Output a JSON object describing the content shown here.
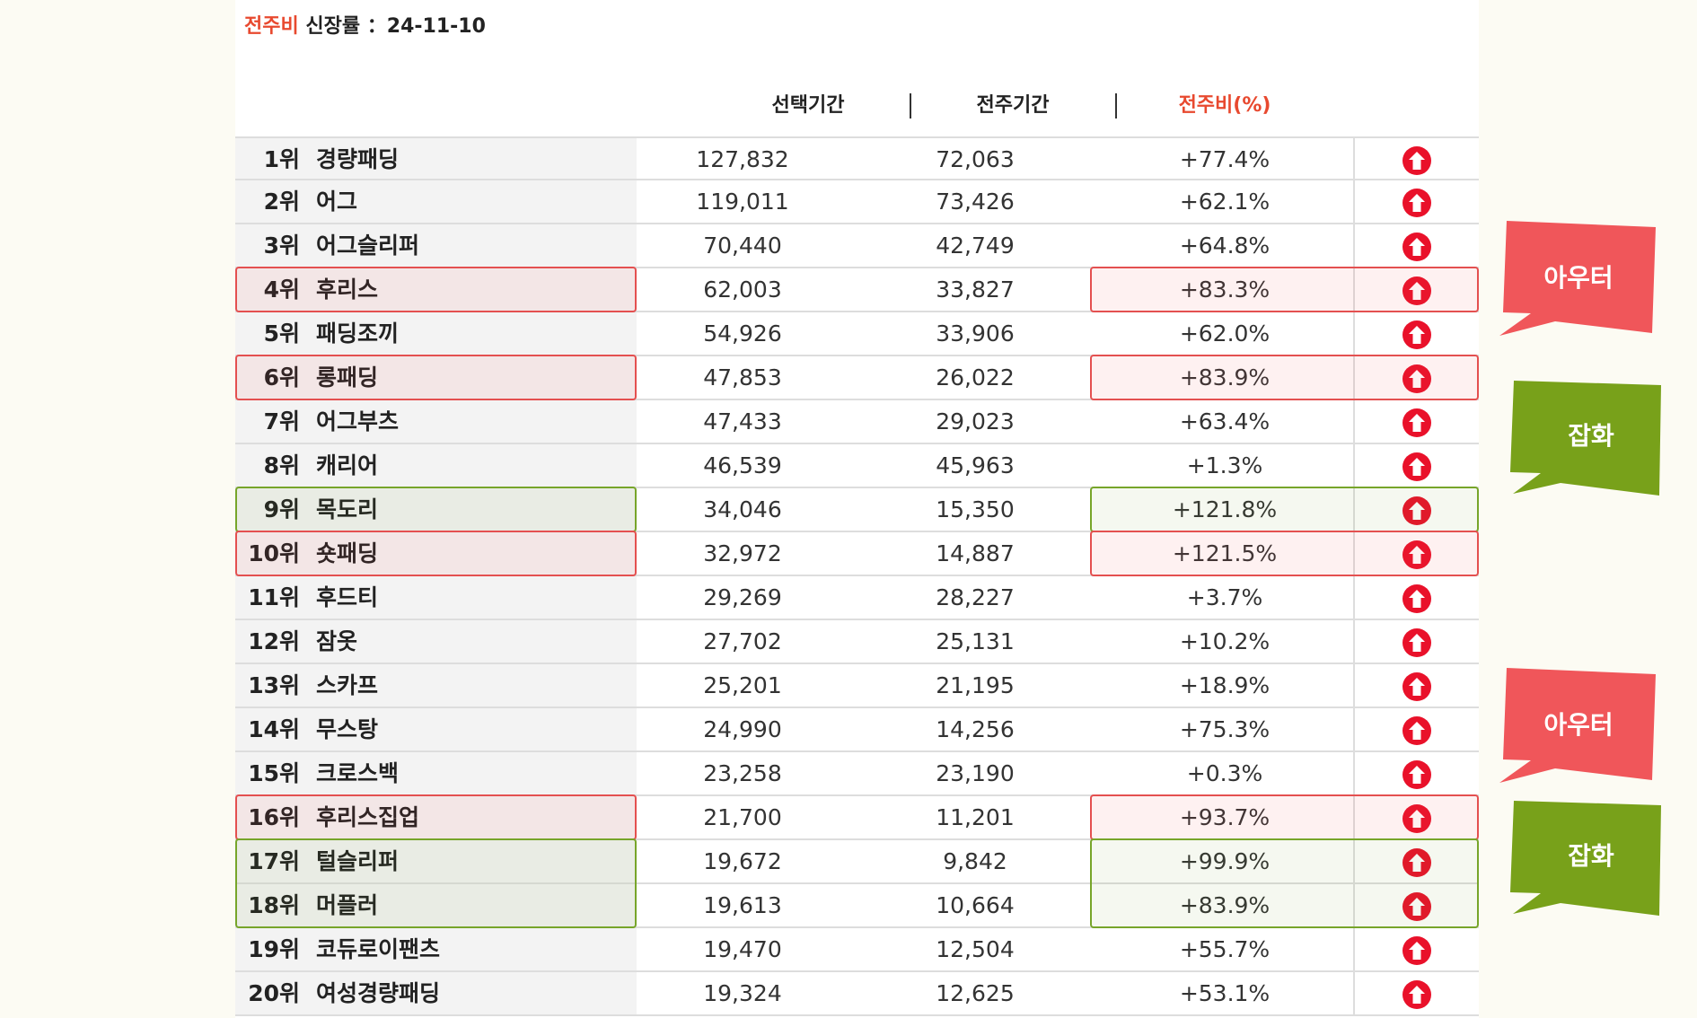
{
  "title": {
    "accent": "전주비",
    "rest": " 신장률 ：24-11-10"
  },
  "headers": {
    "selected": "선택기간",
    "previous": "전주기간",
    "ratio": "전주비(%)"
  },
  "colors": {
    "accent": "#e8492f",
    "red_callout": "#f0565a",
    "green_callout": "#78a11a",
    "arrow": "#e9112a"
  },
  "rows": [
    {
      "rank": "1위",
      "name": "경량패딩",
      "selected": "127,832",
      "previous": "72,063",
      "ratio": "+77.4%",
      "icon": "arrow-up-icon"
    },
    {
      "rank": "2위",
      "name": "어그",
      "selected": "119,011",
      "previous": "73,426",
      "ratio": "+62.1%",
      "icon": "arrow-up-icon"
    },
    {
      "rank": "3위",
      "name": "어그슬리퍼",
      "selected": "70,440",
      "previous": "42,749",
      "ratio": "+64.8%",
      "icon": "arrow-up-icon"
    },
    {
      "rank": "4위",
      "name": "후리스",
      "selected": "62,003",
      "previous": "33,827",
      "ratio": "+83.3%",
      "icon": "arrow-up-icon"
    },
    {
      "rank": "5위",
      "name": "패딩조끼",
      "selected": "54,926",
      "previous": "33,906",
      "ratio": "+62.0%",
      "icon": "arrow-up-icon"
    },
    {
      "rank": "6위",
      "name": "롱패딩",
      "selected": "47,853",
      "previous": "26,022",
      "ratio": "+83.9%",
      "icon": "arrow-up-icon"
    },
    {
      "rank": "7위",
      "name": "어그부츠",
      "selected": "47,433",
      "previous": "29,023",
      "ratio": "+63.4%",
      "icon": "arrow-up-icon"
    },
    {
      "rank": "8위",
      "name": "캐리어",
      "selected": "46,539",
      "previous": "45,963",
      "ratio": "+1.3%",
      "icon": "arrow-up-icon"
    },
    {
      "rank": "9위",
      "name": "목도리",
      "selected": "34,046",
      "previous": "15,350",
      "ratio": "+121.8%",
      "icon": "arrow-up-icon"
    },
    {
      "rank": "10위",
      "name": "숏패딩",
      "selected": "32,972",
      "previous": "14,887",
      "ratio": "+121.5%",
      "icon": "arrow-up-icon"
    },
    {
      "rank": "11위",
      "name": "후드티",
      "selected": "29,269",
      "previous": "28,227",
      "ratio": "+3.7%",
      "icon": "arrow-up-icon"
    },
    {
      "rank": "12위",
      "name": "잠옷",
      "selected": "27,702",
      "previous": "25,131",
      "ratio": "+10.2%",
      "icon": "arrow-up-icon"
    },
    {
      "rank": "13위",
      "name": "스카프",
      "selected": "25,201",
      "previous": "21,195",
      "ratio": "+18.9%",
      "icon": "arrow-up-icon"
    },
    {
      "rank": "14위",
      "name": "무스탕",
      "selected": "24,990",
      "previous": "14,256",
      "ratio": "+75.3%",
      "icon": "arrow-up-icon"
    },
    {
      "rank": "15위",
      "name": "크로스백",
      "selected": "23,258",
      "previous": "23,190",
      "ratio": "+0.3%",
      "icon": "arrow-up-icon"
    },
    {
      "rank": "16위",
      "name": "후리스집업",
      "selected": "21,700",
      "previous": "11,201",
      "ratio": "+93.7%",
      "icon": "arrow-up-icon"
    },
    {
      "rank": "17위",
      "name": "털슬리퍼",
      "selected": "19,672",
      "previous": "9,842",
      "ratio": "+99.9%",
      "icon": "arrow-up-icon"
    },
    {
      "rank": "18위",
      "name": "머플러",
      "selected": "19,613",
      "previous": "10,664",
      "ratio": "+83.9%",
      "icon": "arrow-up-icon"
    },
    {
      "rank": "19위",
      "name": "코듀로이팬츠",
      "selected": "19,470",
      "previous": "12,504",
      "ratio": "+55.7%",
      "icon": "arrow-up-icon"
    },
    {
      "rank": "20위",
      "name": "여성경량패딩",
      "selected": "19,324",
      "previous": "12,625",
      "ratio": "+53.1%",
      "icon": "arrow-up-icon"
    }
  ],
  "callouts": [
    {
      "label": "아우터",
      "color": "red"
    },
    {
      "label": "잡화",
      "color": "green"
    },
    {
      "label": "아우터",
      "color": "red"
    },
    {
      "label": "잡화",
      "color": "green"
    }
  ]
}
